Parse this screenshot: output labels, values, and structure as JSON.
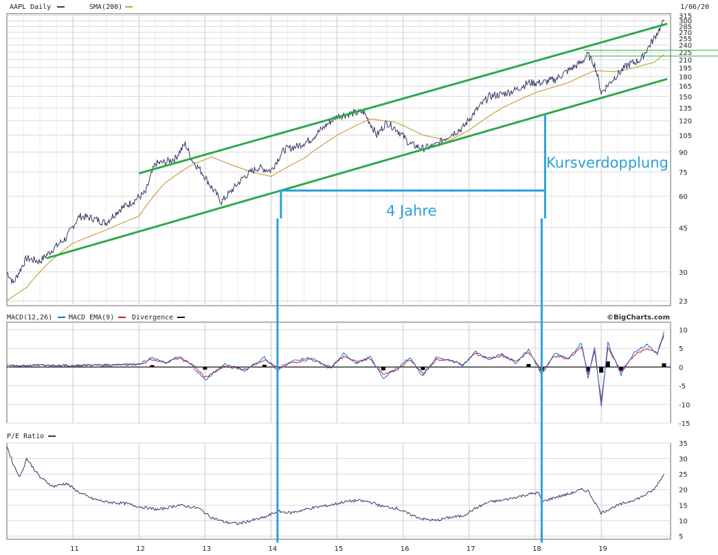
{
  "header": {
    "series_label": "AAPL Daily",
    "sma_label": "SMA(200)",
    "date": "1/06/20",
    "series_color": "#333366",
    "sma_color": "#c8a040"
  },
  "macd_header": {
    "macd_label": "MACD(12,26)",
    "ema_label": "MACD EMA(9)",
    "div_label": "Divergence",
    "credit": "©BigCharts.com",
    "macd_color": "#2060d0",
    "ema_color": "#c02020",
    "div_color": "#000000"
  },
  "pe_header": {
    "label": "P/E Ratio"
  },
  "annotations": {
    "doubling": "Kursverdopplung",
    "years": "4 Jahre",
    "color": "#2aa0dc",
    "channel_color": "#2ea84a"
  },
  "chart_data": [
    {
      "type": "line",
      "title": "AAPL Daily",
      "scale": "log",
      "y_ticks": [
        23,
        30,
        45,
        60,
        75,
        90,
        105,
        120,
        135,
        150,
        165,
        180,
        195,
        210,
        225,
        240,
        255,
        270,
        285,
        300,
        315
      ],
      "x_ticks": [
        "11",
        "12",
        "13",
        "14",
        "15",
        "16",
        "17",
        "18",
        "19"
      ],
      "ylim": [
        22,
        320
      ],
      "series": [
        {
          "name": "AAPL Daily",
          "x": [
            2010.0,
            2010.1,
            2010.3,
            2010.5,
            2010.7,
            2010.9,
            2011.1,
            2011.3,
            2011.5,
            2011.7,
            2011.9,
            2012.1,
            2012.25,
            2012.4,
            2012.55,
            2012.7,
            2012.8,
            2012.95,
            2013.1,
            2013.25,
            2013.4,
            2013.6,
            2013.8,
            2014.0,
            2014.2,
            2014.4,
            2014.6,
            2014.8,
            2015.0,
            2015.2,
            2015.4,
            2015.6,
            2015.75,
            2015.9,
            2016.1,
            2016.3,
            2016.5,
            2016.7,
            2016.9,
            2017.1,
            2017.3,
            2017.5,
            2017.7,
            2017.9,
            2018.1,
            2018.3,
            2018.5,
            2018.7,
            2018.8,
            2018.9,
            2019.0,
            2019.2,
            2019.4,
            2019.6,
            2019.8,
            2019.95
          ],
          "values": [
            30,
            27,
            34,
            33,
            37,
            41,
            50,
            49,
            47,
            53,
            57,
            62,
            81,
            82,
            85,
            97,
            84,
            75,
            65,
            57,
            63,
            72,
            78,
            76,
            92,
            95,
            101,
            113,
            125,
            128,
            130,
            105,
            118,
            111,
            97,
            93,
            96,
            105,
            112,
            131,
            150,
            153,
            159,
            170,
            170,
            175,
            190,
            205,
            220,
            200,
            155,
            178,
            200,
            210,
            255,
            298
          ]
        },
        {
          "name": "SMA(200)",
          "x": [
            2010.0,
            2010.3,
            2010.6,
            2011.0,
            2011.5,
            2012.0,
            2012.4,
            2012.8,
            2013.1,
            2013.4,
            2013.7,
            2014.0,
            2014.5,
            2015.0,
            2015.5,
            2015.9,
            2016.3,
            2016.7,
            2017.0,
            2017.5,
            2018.0,
            2018.5,
            2018.9,
            2019.2,
            2019.5,
            2019.8,
            2019.95
          ],
          "values": [
            23,
            26,
            32,
            39,
            44,
            50,
            68,
            80,
            86,
            80,
            75,
            72,
            85,
            105,
            122,
            118,
            105,
            100,
            110,
            135,
            155,
            170,
            190,
            188,
            195,
            205,
            220
          ]
        }
      ],
      "channel_lines": [
        {
          "x": [
            2010.6,
            2020.0
          ],
          "values": [
            34,
            176
          ]
        },
        {
          "x": [
            2012.0,
            2020.0
          ],
          "values": [
            74,
            292
          ]
        }
      ],
      "horizontal_lines": [
        229,
        217
      ]
    },
    {
      "type": "line",
      "title": "MACD(12,26)",
      "y_ticks": [
        10,
        5,
        0,
        -5,
        -10,
        -15
      ],
      "ylim": [
        -15,
        12
      ],
      "series": [
        {
          "name": "MACD(12,26)",
          "x": [
            2010.0,
            2010.5,
            2011.0,
            2011.5,
            2012.0,
            2012.2,
            2012.4,
            2012.6,
            2012.8,
            2013.0,
            2013.3,
            2013.6,
            2013.9,
            2014.1,
            2014.3,
            2014.6,
            2014.9,
            2015.1,
            2015.3,
            2015.5,
            2015.7,
            2015.9,
            2016.1,
            2016.3,
            2016.5,
            2016.7,
            2016.9,
            2017.1,
            2017.3,
            2017.5,
            2017.7,
            2017.9,
            2018.1,
            2018.3,
            2018.5,
            2018.7,
            2018.8,
            2018.9,
            2019.0,
            2019.1,
            2019.3,
            2019.5,
            2019.7,
            2019.85,
            2019.95
          ],
          "values": [
            0.3,
            0.5,
            0.4,
            0.6,
            0.8,
            2.5,
            1.0,
            2.8,
            0.5,
            -3.5,
            0.8,
            -1.0,
            2.6,
            -1.0,
            1.5,
            2.5,
            -0.5,
            3.5,
            1.0,
            2.7,
            -3.0,
            -0.5,
            2.6,
            -2.5,
            2.6,
            1.8,
            0.5,
            4.2,
            2.0,
            3.5,
            1.0,
            4.8,
            -2.0,
            3.8,
            2.0,
            6.5,
            -3.0,
            5.5,
            -10.5,
            6.5,
            -2.0,
            4.0,
            6.0,
            3.5,
            9.5
          ]
        },
        {
          "name": "MACD EMA(9)",
          "x": [
            2010.0,
            2010.5,
            2011.0,
            2011.5,
            2012.0,
            2012.2,
            2012.4,
            2012.6,
            2012.8,
            2013.0,
            2013.3,
            2013.6,
            2013.9,
            2014.1,
            2014.3,
            2014.6,
            2014.9,
            2015.1,
            2015.3,
            2015.5,
            2015.7,
            2015.9,
            2016.1,
            2016.3,
            2016.5,
            2016.7,
            2016.9,
            2017.1,
            2017.3,
            2017.5,
            2017.7,
            2017.9,
            2018.1,
            2018.3,
            2018.5,
            2018.7,
            2018.8,
            2018.9,
            2019.0,
            2019.1,
            2019.3,
            2019.5,
            2019.7,
            2019.85,
            2019.95
          ],
          "values": [
            0.3,
            0.4,
            0.4,
            0.5,
            0.7,
            2.0,
            1.3,
            2.3,
            0.9,
            -2.8,
            0.2,
            -0.6,
            2.0,
            -0.3,
            1.1,
            2.1,
            0.0,
            2.8,
            1.4,
            2.3,
            -2.1,
            -0.8,
            2.0,
            -1.7,
            2.0,
            1.8,
            0.8,
            3.5,
            2.3,
            3.1,
            1.5,
            4.0,
            -1.0,
            3.0,
            2.2,
            5.5,
            -1.8,
            4.2,
            -9.0,
            5.0,
            -1.0,
            3.2,
            5.0,
            3.8,
            8.5
          ]
        }
      ],
      "divergence": {
        "x": [
          2012.2,
          2013.0,
          2013.9,
          2015.7,
          2016.3,
          2017.9,
          2018.1,
          2018.8,
          2019.0,
          2019.1,
          2019.3,
          2019.95
        ],
        "values": [
          0.5,
          -0.7,
          0.6,
          -0.9,
          -0.8,
          0.8,
          -1.0,
          -1.2,
          -1.5,
          1.5,
          -1.0,
          1.0
        ]
      }
    },
    {
      "type": "line",
      "title": "P/E Ratio",
      "y_ticks": [
        35,
        30,
        25,
        20,
        15,
        10,
        5
      ],
      "ylim": [
        4,
        35
      ],
      "series": [
        {
          "name": "P/E Ratio",
          "x": [
            2010.0,
            2010.1,
            2010.2,
            2010.3,
            2010.5,
            2010.7,
            2010.9,
            2011.1,
            2011.3,
            2011.5,
            2011.8,
            2012.0,
            2012.3,
            2012.6,
            2012.9,
            2013.1,
            2013.3,
            2013.5,
            2013.7,
            2013.9,
            2014.1,
            2014.3,
            2014.6,
            2014.9,
            2015.1,
            2015.3,
            2015.5,
            2015.7,
            2015.9,
            2016.1,
            2016.3,
            2016.5,
            2016.7,
            2016.9,
            2017.1,
            2017.3,
            2017.5,
            2017.7,
            2017.9,
            2018.05,
            2018.1,
            2018.3,
            2018.5,
            2018.7,
            2018.8,
            2018.9,
            2019.0,
            2019.2,
            2019.4,
            2019.6,
            2019.8,
            2019.95
          ],
          "values": [
            34,
            28,
            24,
            30,
            24,
            21,
            22,
            19,
            17,
            16,
            15.5,
            14.5,
            13.5,
            15,
            14,
            11,
            9.5,
            9,
            10,
            11,
            13,
            12.5,
            14,
            15,
            16,
            16.5,
            16,
            14.5,
            14,
            12,
            10.5,
            10,
            11,
            11.5,
            14,
            16,
            16.5,
            17.5,
            18.5,
            19,
            16,
            17.5,
            18.5,
            20,
            19.5,
            16,
            12.5,
            14.5,
            16,
            17.5,
            20,
            25
          ]
        }
      ]
    }
  ]
}
